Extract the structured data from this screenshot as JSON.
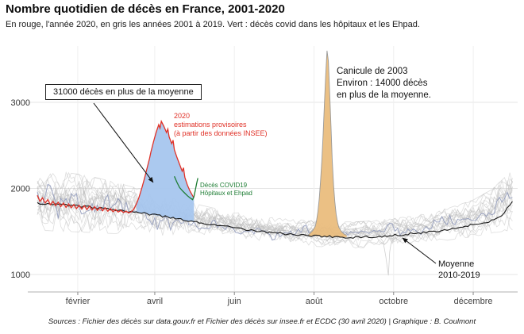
{
  "page": {
    "title": "Nombre quotidien de décès en France, 2001-2020",
    "subtitle": "En rouge, l'année 2020, en gris les années 2001 à 2019. Vert : décès covid dans les hôpitaux et les Ehpad.",
    "source": "Sources : Fichier des décès sur data.gouv.fr et Fichier des décès sur insee.fr et ECDC (30 avril 2020) | Graphique : B. Coulmont"
  },
  "chart_data": {
    "type": "line",
    "title": "Nombre quotidien de décès en France, 2001-2020",
    "xlabel": "",
    "ylabel": "",
    "x_axis": {
      "ticks": [
        "février",
        "avril",
        "juin",
        "août",
        "octobre",
        "décembre"
      ],
      "tick_days": [
        32,
        91,
        152,
        213,
        274,
        335
      ],
      "domain_days": [
        1,
        366
      ]
    },
    "y_axis": {
      "ticks": [
        1000,
        2000,
        3000
      ],
      "range": [
        800,
        3700
      ]
    },
    "legend_position": "none",
    "grid": true,
    "colors": {
      "line_2020": "#e03127",
      "excess_fill": "#a7c6ee",
      "heatwave_fill": "#eabd7d",
      "covid_line": "#1e7d34",
      "mean_line": "#1a1a1a",
      "years_gray": "#bdbdbd"
    },
    "band_2001_2019": {
      "description": "daily deaths envelope of years 2001-2019 (min/max, deaths per day)",
      "days": [
        1,
        15,
        32,
        46,
        60,
        74,
        91,
        105,
        121,
        135,
        152,
        166,
        182,
        196,
        213,
        227,
        244,
        258,
        274,
        288,
        305,
        319,
        335,
        349,
        366
      ],
      "min": [
        1540,
        1530,
        1520,
        1510,
        1500,
        1485,
        1465,
        1450,
        1435,
        1425,
        1412,
        1398,
        1383,
        1368,
        1352,
        1342,
        1332,
        1342,
        1358,
        1378,
        1402,
        1432,
        1465,
        1505,
        1545
      ],
      "max": [
        2230,
        2180,
        2140,
        2100,
        2050,
        1990,
        1930,
        1860,
        1800,
        1750,
        1700,
        1665,
        1635,
        1615,
        1600,
        1590,
        1585,
        1600,
        1625,
        1655,
        1700,
        1760,
        1840,
        1960,
        2200
      ]
    },
    "mean_2010_2019": {
      "days": [
        1,
        10,
        20,
        30,
        40,
        50,
        60,
        70,
        80,
        90,
        100,
        110,
        120,
        130,
        140,
        150,
        160,
        170,
        180,
        190,
        200,
        210,
        220,
        230,
        240,
        250,
        260,
        270,
        280,
        290,
        300,
        310,
        320,
        330,
        340,
        350,
        358,
        365
      ],
      "values": [
        1830,
        1820,
        1810,
        1798,
        1786,
        1772,
        1756,
        1738,
        1716,
        1692,
        1668,
        1642,
        1616,
        1592,
        1568,
        1545,
        1524,
        1505,
        1488,
        1473,
        1461,
        1451,
        1443,
        1437,
        1432,
        1434,
        1440,
        1450,
        1462,
        1477,
        1494,
        1514,
        1537,
        1563,
        1592,
        1628,
        1700,
        1850
      ]
    },
    "year_2020": {
      "days": [
        1,
        3,
        5,
        7,
        9,
        11,
        13,
        15,
        17,
        19,
        21,
        23,
        25,
        27,
        29,
        31,
        33,
        35,
        37,
        39,
        41,
        43,
        45,
        47,
        49,
        51,
        53,
        55,
        57,
        59,
        61,
        63,
        65,
        67,
        69,
        71,
        73,
        75,
        77,
        79,
        81,
        83,
        85,
        87,
        88,
        90,
        92,
        94,
        95,
        96,
        98,
        100,
        101,
        102,
        104,
        105,
        106,
        108,
        110,
        112,
        113,
        114,
        116,
        118,
        120,
        121
      ],
      "values": [
        1920,
        1850,
        1890,
        1830,
        1870,
        1810,
        1850,
        1800,
        1840,
        1790,
        1830,
        1780,
        1820,
        1775,
        1815,
        1765,
        1805,
        1760,
        1800,
        1755,
        1795,
        1750,
        1790,
        1745,
        1780,
        1740,
        1775,
        1735,
        1765,
        1730,
        1755,
        1725,
        1745,
        1720,
        1735,
        1715,
        1730,
        1760,
        1820,
        1900,
        2000,
        2110,
        2230,
        2350,
        2420,
        2540,
        2650,
        2740,
        2700,
        2780,
        2720,
        2650,
        2690,
        2600,
        2520,
        2560,
        2450,
        2360,
        2280,
        2200,
        2240,
        2130,
        2040,
        1970,
        1915,
        1890
      ]
    },
    "heatwave_2003": {
      "days": [
        206,
        208,
        210,
        212,
        214,
        215,
        216,
        217,
        218,
        219,
        220,
        221,
        222,
        223,
        224,
        225,
        226,
        227,
        228,
        229,
        230,
        231,
        232,
        234,
        236,
        238
      ],
      "values": [
        1470,
        1450,
        1480,
        1510,
        1560,
        1630,
        1730,
        1880,
        2080,
        2330,
        2630,
        2980,
        3330,
        3600,
        3480,
        3120,
        2720,
        2320,
        2030,
        1840,
        1700,
        1610,
        1550,
        1500,
        1470,
        1455
      ]
    },
    "covid_2020": {
      "days": [
        106,
        108,
        110,
        112,
        114,
        116,
        118,
        120,
        121,
        122,
        123,
        124
      ],
      "values": [
        2140,
        2070,
        2010,
        1975,
        1945,
        1915,
        1890,
        1870,
        1905,
        1975,
        2050,
        2120
      ]
    },
    "outlier_dip": {
      "days": [
        264,
        266,
        268,
        270,
        271,
        272,
        274,
        276
      ],
      "values": [
        1420,
        1380,
        1210,
        990,
        1260,
        1360,
        1410,
        1430
      ]
    },
    "excess_area_days": [
      76,
      121
    ],
    "annotations": {
      "excess_label": "31000 décès en plus de la moyenne",
      "heatwave_lines": [
        "Canicule de 2003",
        "Environ : 14000 décès",
        "en plus de la moyenne."
      ],
      "estimate_lines": [
        "2020",
        "estimations provisoires",
        "(à partir des données INSEE)"
      ],
      "covid_lines": [
        "Décès COVID19",
        "Hôpitaux et Ehpad"
      ],
      "mean_lines": [
        "Moyenne",
        "2010-2019"
      ]
    }
  }
}
